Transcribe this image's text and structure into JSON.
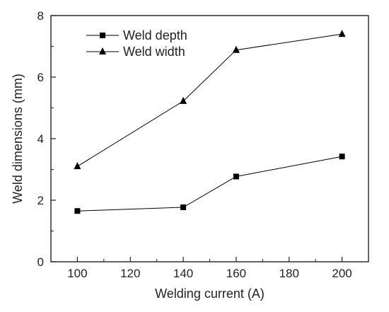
{
  "chart_data": {
    "type": "line",
    "title": "",
    "xlabel": "Welding current (A)",
    "ylabel": "Weld dimensions (mm)",
    "xlim": [
      90,
      210
    ],
    "ylim": [
      0,
      8
    ],
    "x_ticks": [
      "100",
      "120",
      "140",
      "160",
      "180",
      "200"
    ],
    "y_ticks": [
      "0",
      "2",
      "4",
      "6",
      "8"
    ],
    "grid": false,
    "legend_position": "top-left",
    "series": [
      {
        "name": "Weld depth",
        "marker": "square",
        "color": "#000000",
        "x": [
          100,
          140,
          160,
          200
        ],
        "values": [
          1.65,
          1.77,
          2.77,
          3.42
        ]
      },
      {
        "name": "Weld width",
        "marker": "triangle",
        "color": "#000000",
        "x": [
          100,
          140,
          160,
          200
        ],
        "values": [
          3.1,
          5.22,
          6.88,
          7.4
        ]
      }
    ]
  }
}
